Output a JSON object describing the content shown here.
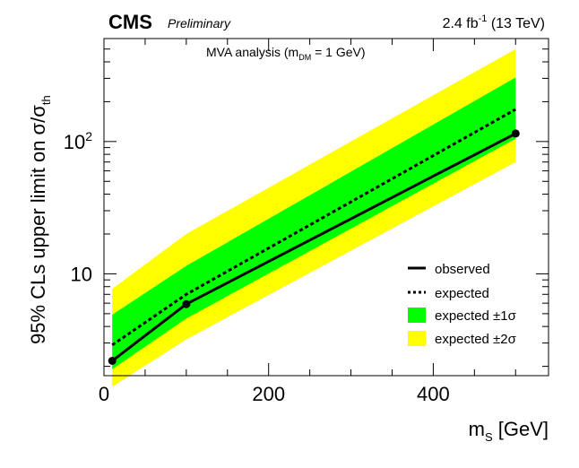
{
  "header": {
    "experiment": "CMS",
    "status": "Preliminary",
    "lumi_value": "2.4 fb",
    "lumi_exp": "-1",
    "lumi_energy": " (13 TeV)"
  },
  "annotation": {
    "pre": "MVA analysis (m",
    "sub": "DM",
    "post": " = 1 GeV)"
  },
  "axes": {
    "xlabel_main": "m",
    "xlabel_sub": "S",
    "xlabel_unit": " [GeV]",
    "ylabel_main": "95% CLs upper limit on σ/σ",
    "ylabel_sub": "th"
  },
  "legend": {
    "observed": "observed",
    "expected": "expected",
    "band1": "expected ±1σ",
    "band2": "expected ±2σ"
  },
  "colors": {
    "band_2sigma": "#ffff00",
    "band_1sigma": "#00ff00",
    "line": "#000000"
  },
  "chart_data": {
    "type": "line",
    "x_scale": "linear",
    "y_scale": "log",
    "xlim": [
      0,
      540
    ],
    "ylim": [
      1.7,
      600
    ],
    "x_ticks": [
      0,
      200,
      400
    ],
    "x_tick_labels": [
      "0",
      "200",
      "400"
    ],
    "y_ticks": [
      10,
      100
    ],
    "y_tick_labels": [
      "10",
      "10^2"
    ],
    "x": [
      10,
      100,
      500
    ],
    "observed": [
      2.2,
      5.9,
      115
    ],
    "expected": [
      2.9,
      7.0,
      175
    ],
    "band_1sigma_low": [
      1.9,
      4.6,
      105
    ],
    "band_1sigma_high": [
      4.9,
      11.5,
      305
    ],
    "band_2sigma_low": [
      1.4,
      3.2,
      70
    ],
    "band_2sigma_high": [
      7.7,
      20,
      500
    ]
  }
}
